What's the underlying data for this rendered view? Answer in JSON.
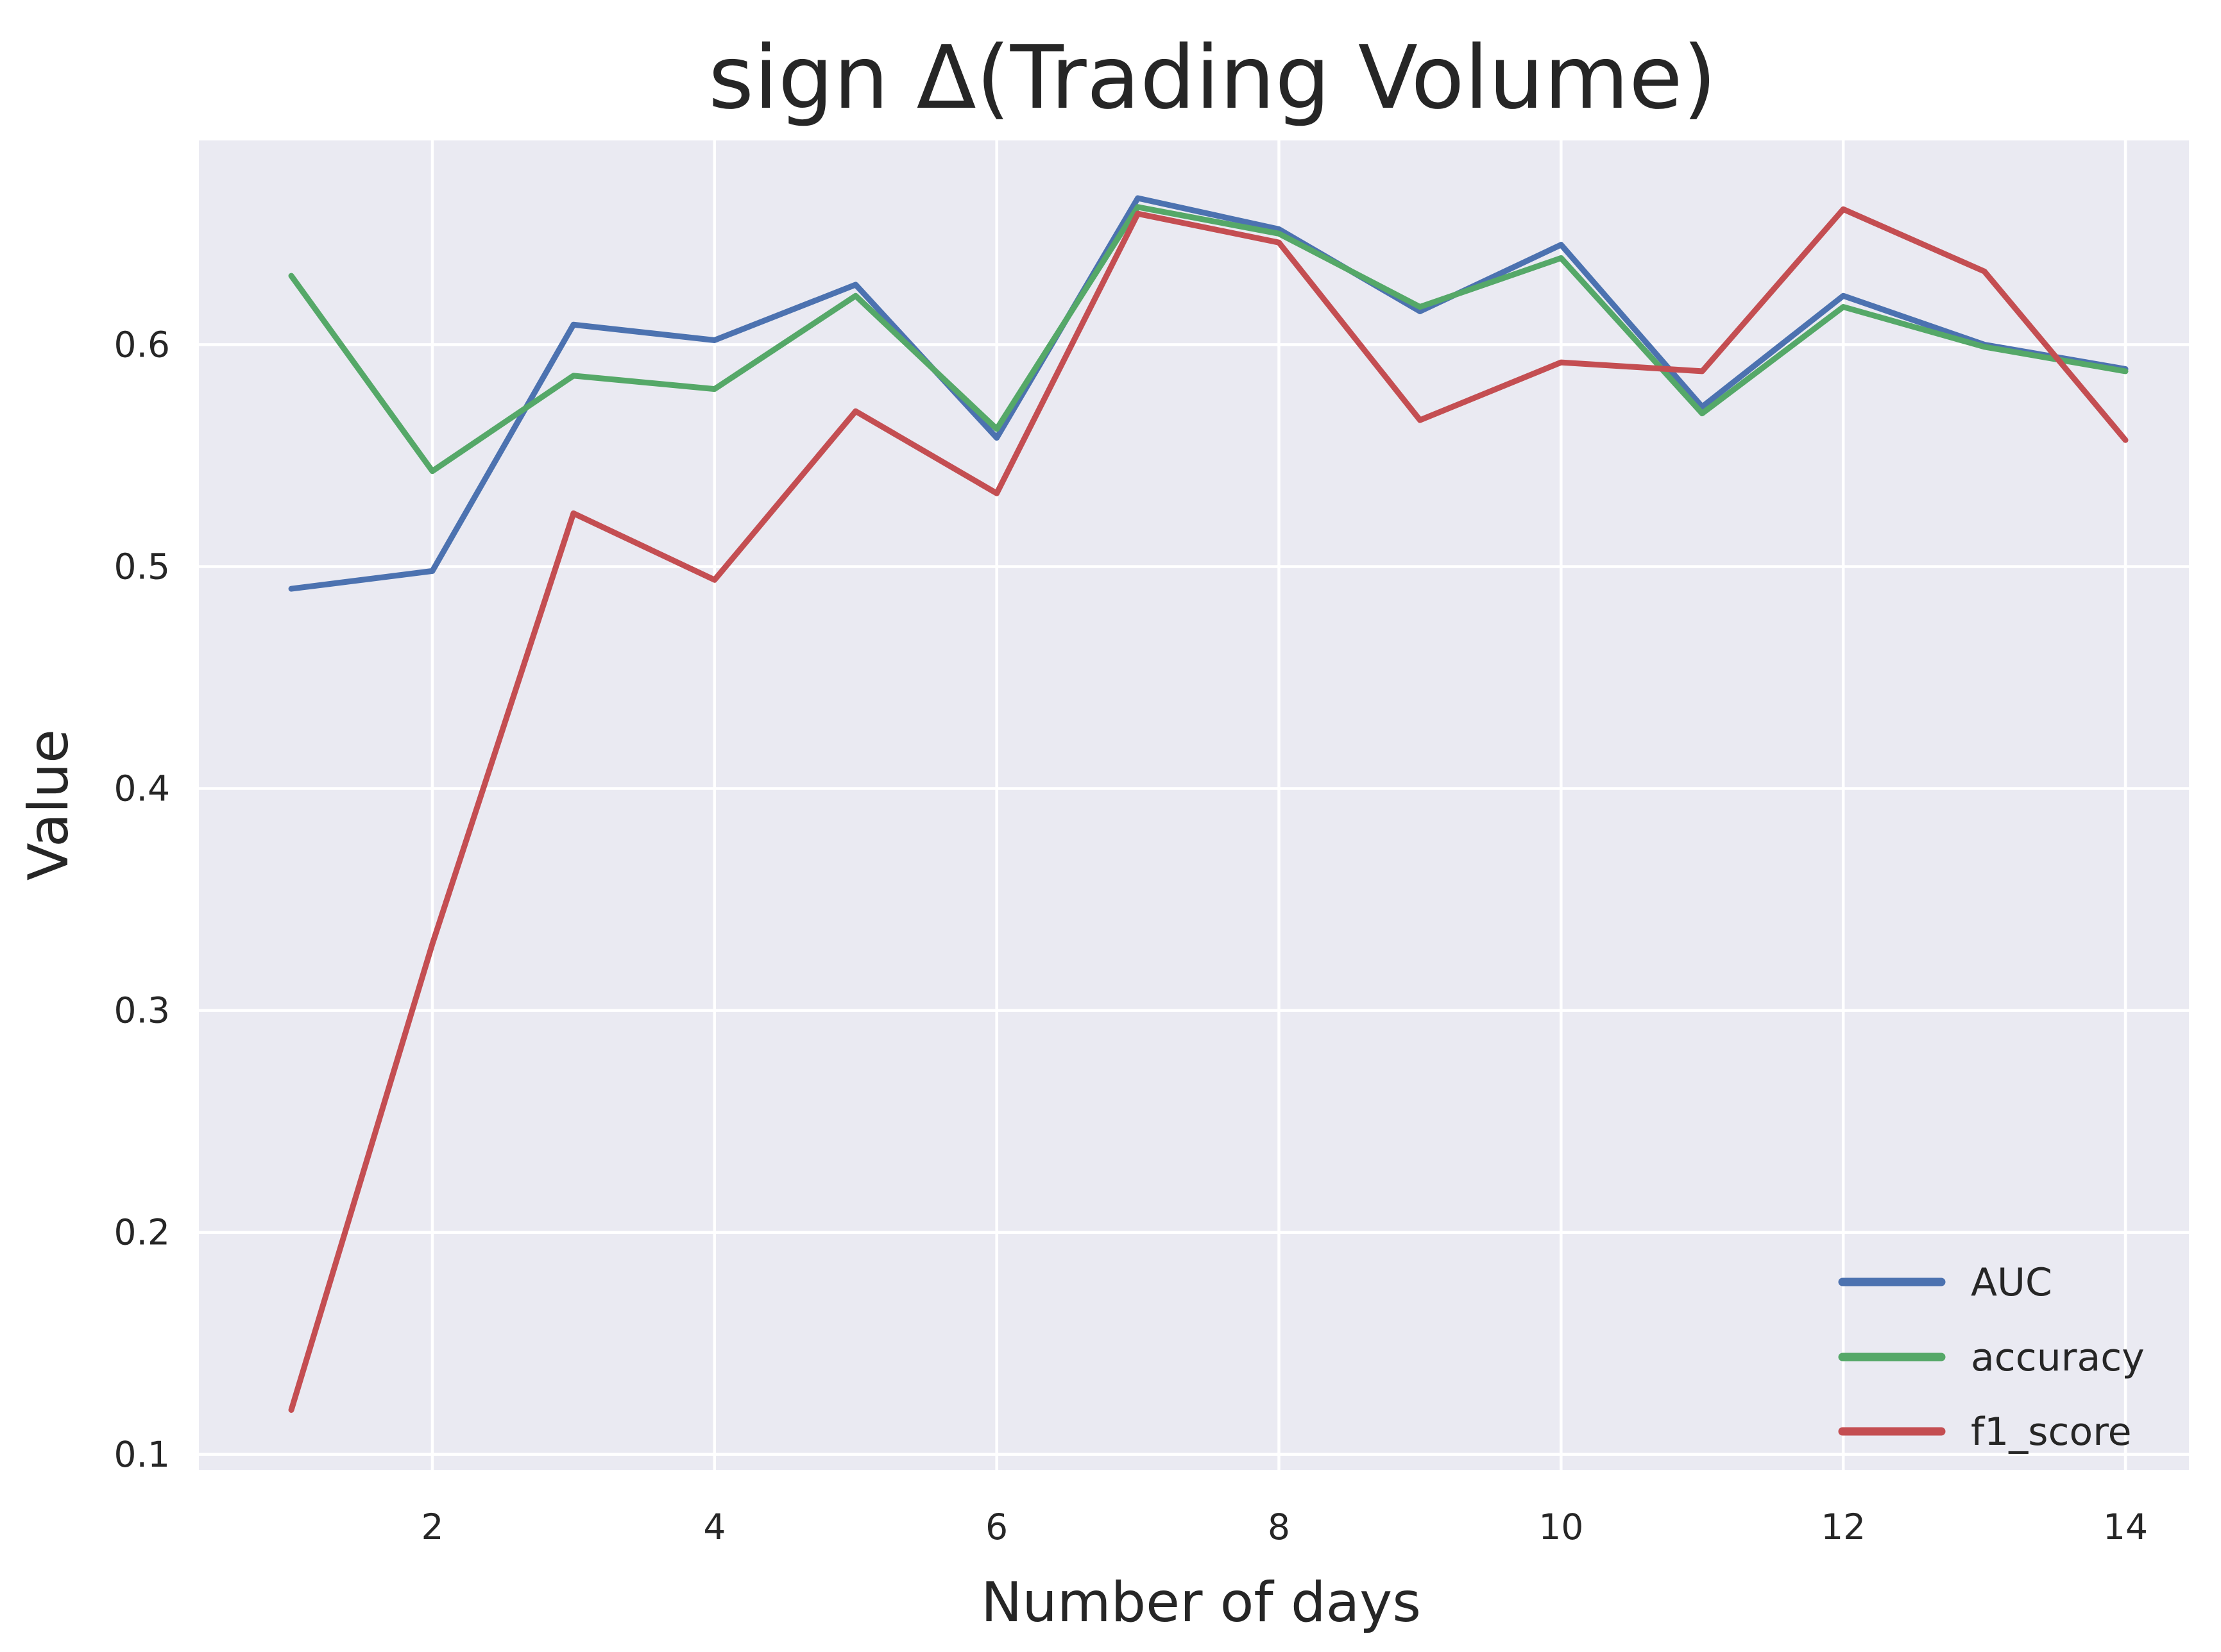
{
  "figure": {
    "background": "#ffffff"
  },
  "chart_data": {
    "type": "line",
    "title": "sign Δ(Trading Volume)",
    "xlabel": "Number of days",
    "ylabel": "Value",
    "x": [
      1,
      2,
      3,
      4,
      5,
      6,
      7,
      8,
      9,
      10,
      11,
      12,
      13,
      14
    ],
    "series": [
      {
        "name": "AUC",
        "color": "#4C72B0",
        "values": [
          0.49,
          0.498,
          0.609,
          0.602,
          0.627,
          0.558,
          0.666,
          0.652,
          0.615,
          0.645,
          0.572,
          0.622,
          0.6,
          0.589
        ]
      },
      {
        "name": "accuracy",
        "color": "#55A868",
        "values": [
          0.631,
          0.543,
          0.586,
          0.58,
          0.622,
          0.562,
          0.662,
          0.65,
          0.617,
          0.639,
          0.569,
          0.617,
          0.599,
          0.588
        ]
      },
      {
        "name": "f1_score",
        "color": "#C44E52",
        "values": [
          0.12,
          0.33,
          0.524,
          0.494,
          0.57,
          0.533,
          0.659,
          0.646,
          0.566,
          0.592,
          0.588,
          0.661,
          0.633,
          0.557
        ]
      }
    ],
    "xticks": [
      2,
      4,
      6,
      8,
      10,
      12,
      14
    ],
    "yticks": [
      "0.1",
      "0.2",
      "0.3",
      "0.4",
      "0.5",
      "0.6"
    ],
    "ytick_values": [
      0.1,
      0.2,
      0.3,
      0.4,
      0.5,
      0.6
    ],
    "xlim": [
      0.345,
      14.45
    ],
    "ylim": [
      0.093,
      0.692
    ],
    "grid": true,
    "legend": {
      "position": "lower right",
      "labels": [
        "AUC",
        "accuracy",
        "f1_score"
      ]
    },
    "colors": {
      "axes_background": "#EAEAF2",
      "grid": "#FFFFFF",
      "text": "#262626"
    }
  }
}
